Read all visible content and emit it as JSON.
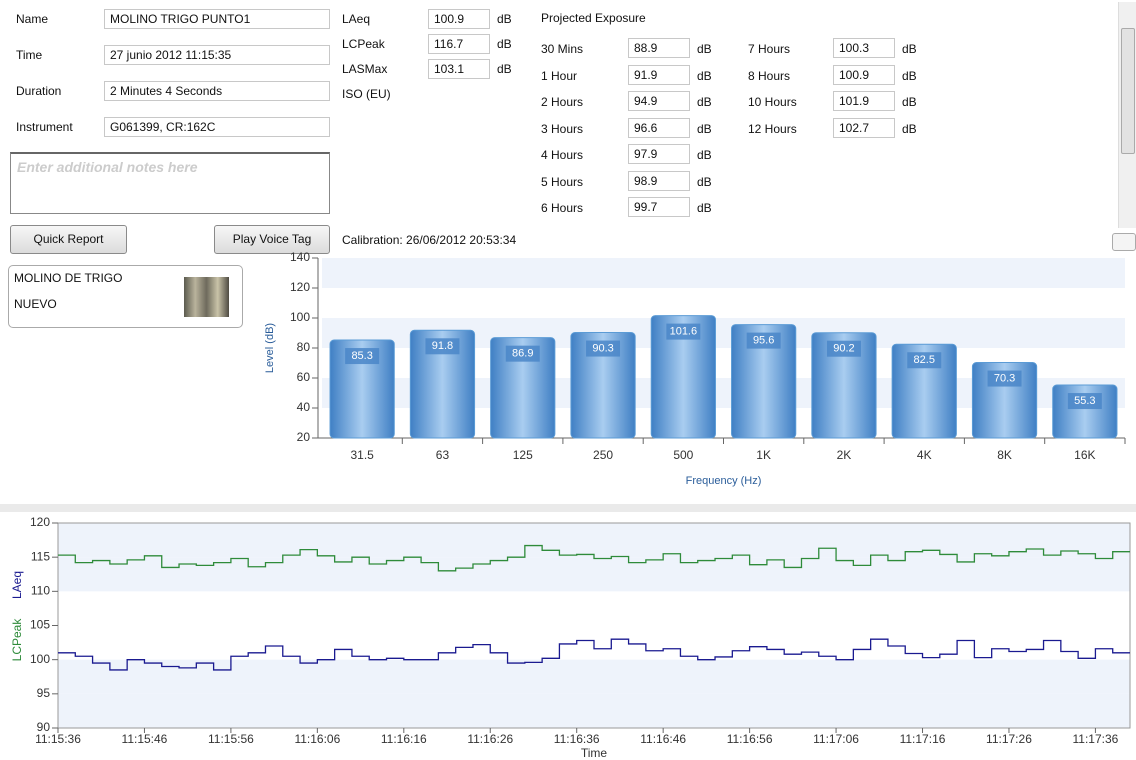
{
  "form": {
    "fields": [
      {
        "label": "Name",
        "value": "MOLINO TRIGO PUNTO1"
      },
      {
        "label": "Time",
        "value": "27 junio 2012 11:15:35"
      },
      {
        "label": "Duration",
        "value": "2 Minutes 4 Seconds"
      },
      {
        "label": "Instrument",
        "value": "G061399, CR:162C"
      }
    ],
    "notes_placeholder": "Enter additional notes here",
    "buttons": [
      "Quick Report",
      "Play Voice Tag"
    ]
  },
  "levels": [
    {
      "label": "LAeq",
      "value": "100.9",
      "unit": "dB"
    },
    {
      "label": "LCPeak",
      "value": "116.7",
      "unit": "dB"
    },
    {
      "label": "LASMax",
      "value": "103.1",
      "unit": "dB"
    },
    {
      "label": "ISO (EU)"
    }
  ],
  "projected_exposure": {
    "title": "Projected Exposure",
    "columns": [
      [
        {
          "label": "30 Mins",
          "value": "88.9",
          "unit": "dB"
        },
        {
          "label": "1 Hour",
          "value": "91.9",
          "unit": "dB"
        },
        {
          "label": "2 Hours",
          "value": "94.9",
          "unit": "dB"
        },
        {
          "label": "3 Hours",
          "value": "96.6",
          "unit": "dB"
        },
        {
          "label": "4 Hours",
          "value": "97.9",
          "unit": "dB"
        },
        {
          "label": "5 Hours",
          "value": "98.9",
          "unit": "dB"
        },
        {
          "label": "6 Hours",
          "value": "99.7",
          "unit": "dB"
        }
      ],
      [
        {
          "label": "7 Hours",
          "value": "100.3",
          "unit": "dB"
        },
        {
          "label": "8 Hours",
          "value": "100.9",
          "unit": "dB"
        },
        {
          "label": "10 Hours",
          "value": "101.9",
          "unit": "dB"
        },
        {
          "label": "12 Hours",
          "value": "102.7",
          "unit": "dB"
        }
      ]
    ]
  },
  "calibration": "Calibration: 26/06/2012 20:53:34",
  "location": {
    "lines": [
      "MOLINO DE TRIGO",
      "NUEVO"
    ]
  },
  "chart_data": [
    {
      "type": "bar",
      "x_label": "Frequency (Hz)",
      "y_label": "Level (dB)",
      "categories": [
        "31.5",
        "63",
        "125",
        "250",
        "500",
        "1K",
        "2K",
        "4K",
        "8K",
        "16K"
      ],
      "values": [
        85.3,
        91.8,
        86.9,
        90.3,
        101.6,
        95.6,
        90.2,
        82.5,
        70.3,
        55.3
      ],
      "color": "#5b9bd5",
      "ylim": [
        20,
        140
      ],
      "yticks": [
        20,
        40,
        60,
        80,
        100,
        120,
        140
      ]
    },
    {
      "type": "step",
      "x_label": "Time",
      "x": [
        "11:15:36",
        "11:15:38",
        "11:15:40",
        "11:15:42",
        "11:15:44",
        "11:15:46",
        "11:15:48",
        "11:15:50",
        "11:15:52",
        "11:15:54",
        "11:15:56",
        "11:15:58",
        "11:16:00",
        "11:16:02",
        "11:16:04",
        "11:16:06",
        "11:16:08",
        "11:16:10",
        "11:16:12",
        "11:16:14",
        "11:16:16",
        "11:16:18",
        "11:16:20",
        "11:16:22",
        "11:16:24",
        "11:16:26",
        "11:16:28",
        "11:16:30",
        "11:16:32",
        "11:16:34",
        "11:16:36",
        "11:16:38",
        "11:16:40",
        "11:16:42",
        "11:16:44",
        "11:16:46",
        "11:16:48",
        "11:16:50",
        "11:16:52",
        "11:16:54",
        "11:16:56",
        "11:16:58",
        "11:17:00",
        "11:17:02",
        "11:17:04",
        "11:17:06",
        "11:17:08",
        "11:17:10",
        "11:17:12",
        "11:17:14",
        "11:17:16",
        "11:17:18",
        "11:17:20",
        "11:17:22",
        "11:17:24",
        "11:17:26",
        "11:17:28",
        "11:17:30",
        "11:17:32",
        "11:17:34",
        "11:17:36",
        "11:17:38"
      ],
      "xlim": [
        "11:15:36",
        "11:17:40"
      ],
      "xticks": [
        "11:15:36",
        "11:15:46",
        "11:15:56",
        "11:16:06",
        "11:16:16",
        "11:16:26",
        "11:16:36",
        "11:16:46",
        "11:16:56",
        "11:17:06",
        "11:17:16",
        "11:17:26",
        "11:17:36"
      ],
      "ylim": [
        90,
        120
      ],
      "yticks": [
        90,
        95,
        100,
        105,
        110,
        115,
        120
      ],
      "series": [
        {
          "name": "LAeq",
          "color": "#1a1a90",
          "values": [
            101,
            100.5,
            99.5,
            98.5,
            100,
            99.5,
            99,
            98.8,
            99.5,
            98.5,
            100.5,
            101,
            102,
            100.5,
            99.5,
            100,
            101.5,
            100.5,
            100,
            100.2,
            100,
            100,
            101,
            101.8,
            102.2,
            101,
            99.5,
            99.6,
            100.2,
            102.3,
            102.8,
            101.6,
            103,
            102.3,
            101.3,
            101.6,
            100.5,
            100,
            100.4,
            101.3,
            101.9,
            101.5,
            100.8,
            101.1,
            100.5,
            100,
            101.5,
            103,
            102,
            100.9,
            100.3,
            100.8,
            102.8,
            100.3,
            101.6,
            101.2,
            101.5,
            102.8,
            101.2,
            100.2,
            101.6,
            101
          ]
        },
        {
          "name": "LCPeak",
          "color": "#2e8b3a",
          "values": [
            115.3,
            114.2,
            114.5,
            114,
            114.6,
            115.2,
            113.5,
            114,
            113.8,
            114.2,
            114.8,
            113.6,
            114.2,
            115.3,
            116.1,
            115.2,
            114.3,
            115,
            114,
            114.5,
            115,
            114.2,
            113,
            113.4,
            114,
            114.5,
            115,
            116.7,
            116,
            115.3,
            115.4,
            114.8,
            115.1,
            114.2,
            114.6,
            115.5,
            114.2,
            114.5,
            114.8,
            115.3,
            113.9,
            114.6,
            113.5,
            114.8,
            116.3,
            114.5,
            113.8,
            115.3,
            114.5,
            115.8,
            116,
            115.4,
            114.3,
            115.5,
            115.2,
            115.8,
            116.2,
            115.3,
            115.9,
            115.5,
            114.8,
            115.8
          ]
        }
      ]
    }
  ]
}
